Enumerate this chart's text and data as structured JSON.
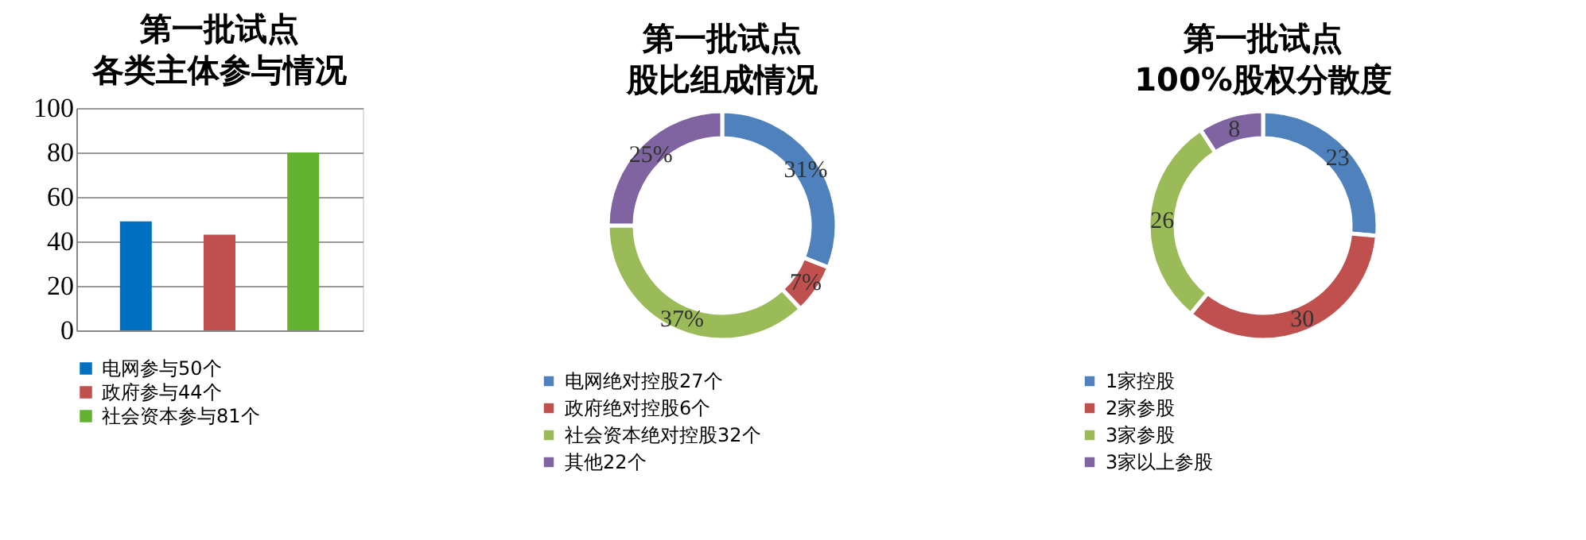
{
  "chart_data": [
    {
      "type": "bar",
      "title": "第一批试点各类主体参与情况",
      "categories": [
        null
      ],
      "series": [
        {
          "name": "电网参与50个",
          "color": "#0070c0",
          "values": [
            49
          ]
        },
        {
          "name": "政府参与44个",
          "color": "#c0504d",
          "values": [
            43
          ]
        },
        {
          "name": "社会资本参与81个",
          "color": "#63b22f",
          "values": [
            80
          ]
        }
      ],
      "ylim": [
        0,
        100
      ],
      "yticks": [
        0,
        20,
        40,
        60,
        80,
        100
      ],
      "grid": "y",
      "legend": "bottom",
      "tick_labels": "y"
    },
    {
      "type": "donut",
      "title": "第一批试点股比组成情况",
      "categories": [
        "电网绝对控股27个",
        "政府绝对控股6个",
        "社会资本绝对控股32个",
        "其他22个"
      ],
      "values": [
        31,
        7,
        37,
        25
      ],
      "value_labels": [
        "31%",
        "7%",
        "37%",
        "25%"
      ],
      "colors": [
        "#4f81bd",
        "#c0504d",
        "#9bbb59",
        "#8064a2"
      ],
      "legend": "bottom"
    },
    {
      "type": "donut",
      "title": "第一批试点100%股权分散度",
      "categories": [
        "1家控股",
        "2家参股",
        "3家参股",
        "3家以上参股"
      ],
      "values": [
        23,
        30,
        26,
        8
      ],
      "data_labels": true,
      "colors": [
        "#4f81bd",
        "#c0504d",
        "#9bbb59",
        "#8064a2"
      ],
      "legend": "bottom"
    }
  ]
}
